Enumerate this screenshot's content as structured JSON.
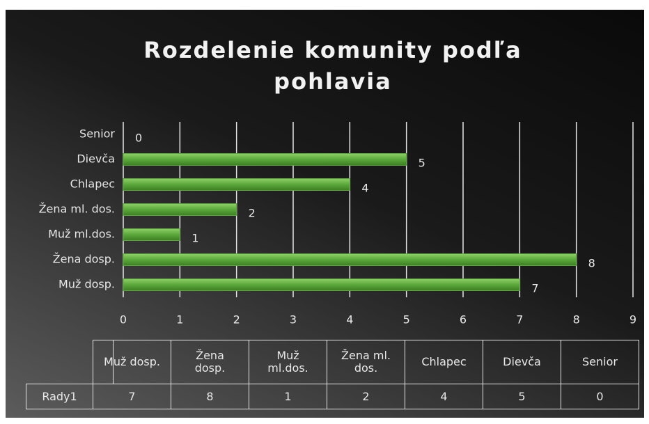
{
  "chart_data": {
    "type": "barh",
    "title": "Rozdelenie komunity podľa pohlavia",
    "categories": [
      "Muž dosp.",
      "Žena dosp.",
      "Muž ml.dos.",
      "Žena ml. dos.",
      "Chlapec",
      "Dievča",
      "Senior"
    ],
    "series": [
      {
        "name": "Rady1",
        "color": "#5aa83a",
        "values": [
          7,
          8,
          1,
          2,
          4,
          5,
          0
        ]
      }
    ],
    "xlim": [
      0,
      9
    ],
    "xticks": [
      0,
      1,
      2,
      3,
      4,
      5,
      6,
      7,
      8,
      9
    ],
    "grid": true
  }
}
